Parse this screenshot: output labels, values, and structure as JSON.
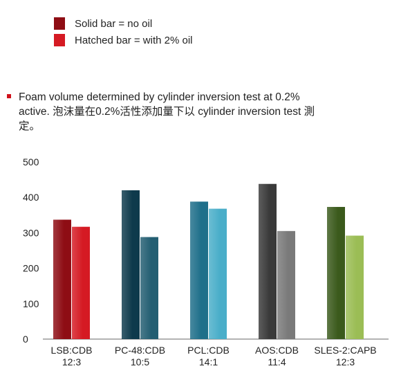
{
  "legend": {
    "items": [
      {
        "label": "Solid bar = no oil",
        "color": "#8e0d14"
      },
      {
        "label": "Hatched bar = with 2% oil",
        "color": "#d51a23"
      }
    ]
  },
  "note": {
    "text": "Foam volume determined by cylinder inversion test at 0.2% active. 泡沫量在0.2%活性添加量下以 cylinder inversion test 測定。"
  },
  "chart_data": {
    "type": "bar",
    "categories": [
      "LSB:CDB\n12:3",
      "PC-48:CDB\n10:5",
      "PCL:CDB\n14:1",
      "AOS:CDB\n11:4",
      "SLES-2:CAPB\n12:3"
    ],
    "series": [
      {
        "name": "Solid bar = no oil",
        "values": [
          337,
          420,
          388,
          438,
          373
        ],
        "colors": [
          "#8e0d14",
          "#0e3a4c",
          "#1f6f8a",
          "#3a3a3a",
          "#3b5a1c"
        ]
      },
      {
        "name": "Hatched bar = with 2% oil",
        "values": [
          317,
          288,
          368,
          305,
          292
        ],
        "colors": [
          "#d51a23",
          "#235e72",
          "#4aaec9",
          "#7a7a7a",
          "#9bbd55"
        ]
      }
    ],
    "yticks": [
      0,
      100,
      200,
      300,
      400,
      500
    ],
    "ylim": [
      0,
      500
    ],
    "grid": false,
    "legend_position": "top-left"
  }
}
